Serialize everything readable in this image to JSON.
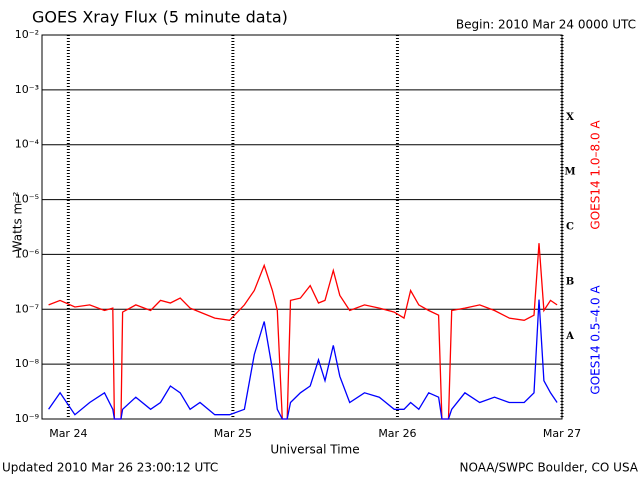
{
  "chart_data": {
    "type": "line",
    "title": "GOES Xray Flux (5 minute data)",
    "subtitle": "Begin:  2010 Mar 24 0000 UTC",
    "x_label": "Universal Time",
    "y_label": "Watts m⁻²",
    "footer_left": "Updated 2010 Mar 26 23:00:12 UTC",
    "footer_right": "NOAA/SWPC Boulder, CO USA",
    "flare_classes": [
      "A",
      "B",
      "C",
      "M",
      "X"
    ],
    "log_scale_y": true,
    "grid": true,
    "xlim": [
      -0.16,
      3
    ],
    "xticks": [
      {
        "value": 0,
        "label": "Mar 24"
      },
      {
        "value": 1,
        "label": "Mar 25"
      },
      {
        "value": 2,
        "label": "Mar 26"
      },
      {
        "value": 3,
        "label": "Mar 27"
      }
    ],
    "ylim": [
      1e-09,
      0.01
    ],
    "yticks": [
      {
        "value": 1e-09,
        "label": "10⁻⁹"
      },
      {
        "value": 1e-08,
        "label": "10⁻⁸"
      },
      {
        "value": 1e-07,
        "label": "10⁻⁷"
      },
      {
        "value": 1e-06,
        "label": "10⁻⁶"
      },
      {
        "value": 1e-05,
        "label": "10⁻⁵"
      },
      {
        "value": 0.0001,
        "label": "10⁻⁴"
      },
      {
        "value": 0.001,
        "label": "10⁻³"
      },
      {
        "value": 0.01,
        "label": "10⁻²"
      }
    ],
    "x": [
      -0.12,
      -0.05,
      0.04,
      0.13,
      0.22,
      0.27,
      0.28,
      0.32,
      0.33,
      0.41,
      0.5,
      0.56,
      0.62,
      0.68,
      0.74,
      0.8,
      0.89,
      0.98,
      1.07,
      1.13,
      1.19,
      1.24,
      1.27,
      1.3,
      1.33,
      1.35,
      1.41,
      1.47,
      1.52,
      1.56,
      1.61,
      1.65,
      1.71,
      1.8,
      1.89,
      1.98,
      2.04,
      2.08,
      2.13,
      2.19,
      2.25,
      2.27,
      2.31,
      2.33,
      2.41,
      2.5,
      2.59,
      2.68,
      2.77,
      2.83,
      2.86,
      2.89,
      2.93,
      2.97
    ],
    "series": [
      {
        "name": "GOES14 1.0–8.0 A",
        "color": "#ff0000",
        "values": [
          1.2e-07,
          1.45e-07,
          1.1e-07,
          1.2e-07,
          9.5e-08,
          1.05e-07,
          1e-09,
          1e-09,
          8.9e-08,
          1.2e-07,
          9.5e-08,
          1.45e-07,
          1.3e-07,
          1.6e-07,
          1.05e-07,
          8.9e-08,
          6.9e-08,
          6.3e-08,
          1.2e-07,
          2.2e-07,
          6.3e-07,
          2.2e-07,
          9.5e-08,
          1e-09,
          1e-09,
          1.45e-07,
          1.6e-07,
          2.7e-07,
          1.3e-07,
          1.45e-07,
          5.1e-07,
          1.8e-07,
          9.5e-08,
          1.2e-07,
          1.05e-07,
          8.9e-08,
          6.9e-08,
          2.2e-07,
          1.2e-07,
          9.5e-08,
          7.8e-08,
          1e-09,
          1e-09,
          9.5e-08,
          1.05e-07,
          1.2e-07,
          9.5e-08,
          6.9e-08,
          6.3e-08,
          7.8e-08,
          1.6e-06,
          9.5e-08,
          1.45e-07,
          1.2e-07
        ]
      },
      {
        "name": "GOES14 0.5–4.0 A",
        "color": "#0000ff",
        "values": [
          1.5e-09,
          3e-09,
          1.2e-09,
          2e-09,
          3e-09,
          1.5e-09,
          1e-09,
          1e-09,
          1.5e-09,
          2.5e-09,
          1.5e-09,
          2e-09,
          4e-09,
          3e-09,
          1.5e-09,
          2e-09,
          1.2e-09,
          1.2e-09,
          1.5e-09,
          1.5e-08,
          6e-08,
          8e-09,
          1.5e-09,
          1e-09,
          1e-09,
          2e-09,
          3e-09,
          4e-09,
          1.2e-08,
          5e-09,
          2.2e-08,
          6e-09,
          2e-09,
          3e-09,
          2.5e-09,
          1.5e-09,
          1.5e-09,
          2e-09,
          1.5e-09,
          3e-09,
          2.5e-09,
          1e-09,
          1e-09,
          1.5e-09,
          3e-09,
          2e-09,
          2.5e-09,
          2e-09,
          2e-09,
          3e-09,
          1.5e-07,
          5e-09,
          3e-09,
          2e-09
        ]
      }
    ]
  }
}
